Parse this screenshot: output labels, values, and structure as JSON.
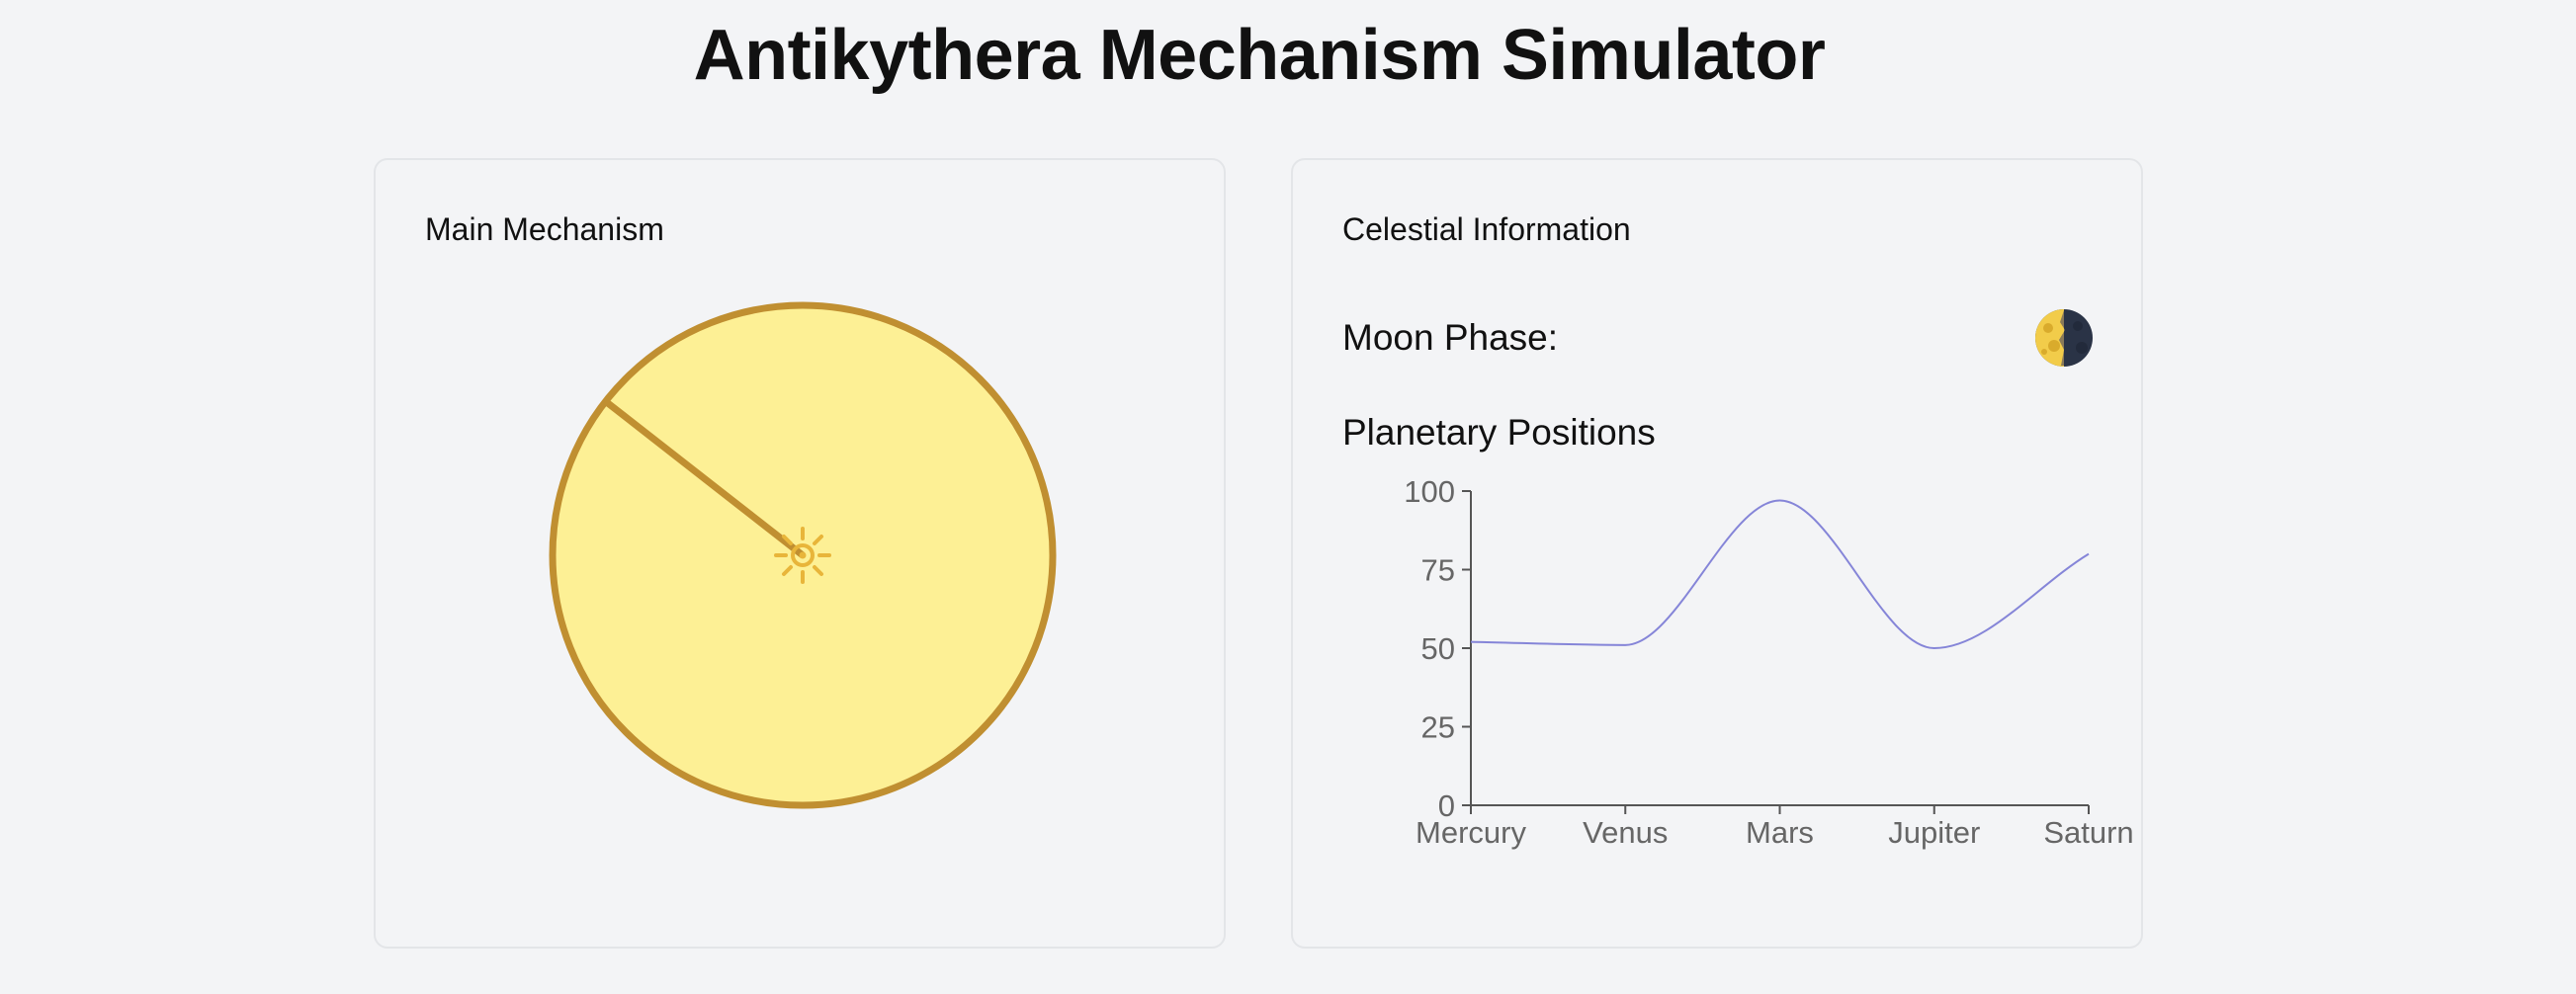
{
  "header": {
    "title": "Antikythera Mechanism Simulator"
  },
  "mechanism_panel": {
    "heading": "Main Mechanism",
    "center_icon": "sun-icon",
    "pointer_angle_deg": -38,
    "colors": {
      "dial_fill": "#fdf095",
      "dial_stroke": "#c08f31",
      "sun": "#e8b53a"
    }
  },
  "celestial_panel": {
    "heading": "Celestial Information",
    "moon_phase_label": "Moon Phase:",
    "moon_phase_icon": "last-quarter-moon-icon",
    "planetary_label": "Planetary Positions"
  },
  "chart_data": {
    "type": "line",
    "categories": [
      "Mercury",
      "Venus",
      "Mars",
      "Jupiter",
      "Saturn"
    ],
    "series": [
      {
        "values": [
          52,
          51,
          97,
          50,
          80
        ]
      }
    ],
    "ylim": [
      0,
      100
    ],
    "yticks": [
      "0",
      "25",
      "50",
      "75",
      "100"
    ],
    "line_color": "#8585d8",
    "grid": false,
    "legend": "none"
  }
}
